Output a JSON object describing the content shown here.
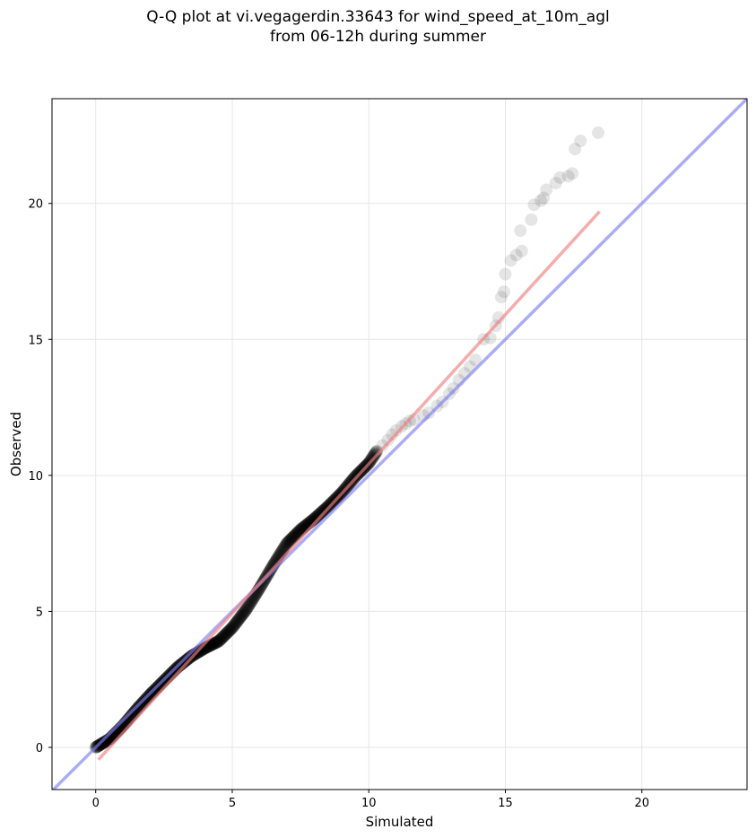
{
  "chart_data": {
    "type": "scatter",
    "title_line_1": "Q-Q plot at vi.vegagerdin.33643 for wind_speed_at_10m_agl",
    "title_line_2": "from 06-12h during summer",
    "xlabel": "Simulated",
    "ylabel": "Observed",
    "xlim": [
      -1.6,
      23.85
    ],
    "ylim": [
      -1.55,
      23.85
    ],
    "xticks": [
      0,
      5,
      10,
      15,
      20
    ],
    "yticks": [
      0,
      5,
      10,
      15,
      20
    ],
    "grid": true,
    "colors": {
      "points": "#000000",
      "identity_line": "#8080f0",
      "fit_line": "#f08080",
      "grid": "#e6e6e6"
    },
    "reference_lines": [
      {
        "kind": "identity",
        "x": [
          -1.6,
          23.85
        ],
        "y": [
          -1.6,
          23.85
        ]
      },
      {
        "kind": "fit",
        "x": [
          0.1,
          18.45
        ],
        "y": [
          -0.45,
          19.7
        ]
      }
    ],
    "quantiles": {
      "dense_curve": {
        "x": [
          0.0,
          0.5,
          1.0,
          1.5,
          2.0,
          2.5,
          3.0,
          3.5,
          4.0,
          4.5,
          5.0,
          5.5,
          6.0,
          6.5,
          7.0,
          7.5,
          8.0,
          8.5,
          9.0,
          9.5,
          10.0,
          10.3
        ],
        "y": [
          0.0,
          0.3,
          0.8,
          1.4,
          1.95,
          2.45,
          2.95,
          3.35,
          3.65,
          3.9,
          4.4,
          5.05,
          5.85,
          6.7,
          7.5,
          8.0,
          8.4,
          8.85,
          9.35,
          9.95,
          10.45,
          10.9
        ]
      },
      "tail_points": [
        [
          10.5,
          11.1
        ],
        [
          10.7,
          11.3
        ],
        [
          10.85,
          11.5
        ],
        [
          11.0,
          11.65
        ],
        [
          11.2,
          11.8
        ],
        [
          11.35,
          11.9
        ],
        [
          11.5,
          12.0
        ],
        [
          11.65,
          12.05
        ],
        [
          12.0,
          12.2
        ],
        [
          12.2,
          12.3
        ],
        [
          12.5,
          12.55
        ],
        [
          12.7,
          12.7
        ],
        [
          12.95,
          13.0
        ],
        [
          13.1,
          13.2
        ],
        [
          13.3,
          13.5
        ],
        [
          13.5,
          13.75
        ],
        [
          13.7,
          14.0
        ],
        [
          13.9,
          14.25
        ],
        [
          14.2,
          15.0
        ],
        [
          14.45,
          15.05
        ],
        [
          14.65,
          15.5
        ],
        [
          14.75,
          15.8
        ],
        [
          14.85,
          16.55
        ],
        [
          14.95,
          16.75
        ],
        [
          15.0,
          17.4
        ],
        [
          15.2,
          17.9
        ],
        [
          15.4,
          18.1
        ],
        [
          15.6,
          18.25
        ],
        [
          15.55,
          19.0
        ],
        [
          15.95,
          19.4
        ],
        [
          16.05,
          19.95
        ],
        [
          16.3,
          20.1
        ],
        [
          16.4,
          20.2
        ],
        [
          16.5,
          20.5
        ],
        [
          16.85,
          20.75
        ],
        [
          17.0,
          20.95
        ],
        [
          17.3,
          21.0
        ],
        [
          17.45,
          21.1
        ],
        [
          17.55,
          22.0
        ],
        [
          17.75,
          22.3
        ],
        [
          18.4,
          22.6
        ]
      ]
    }
  }
}
